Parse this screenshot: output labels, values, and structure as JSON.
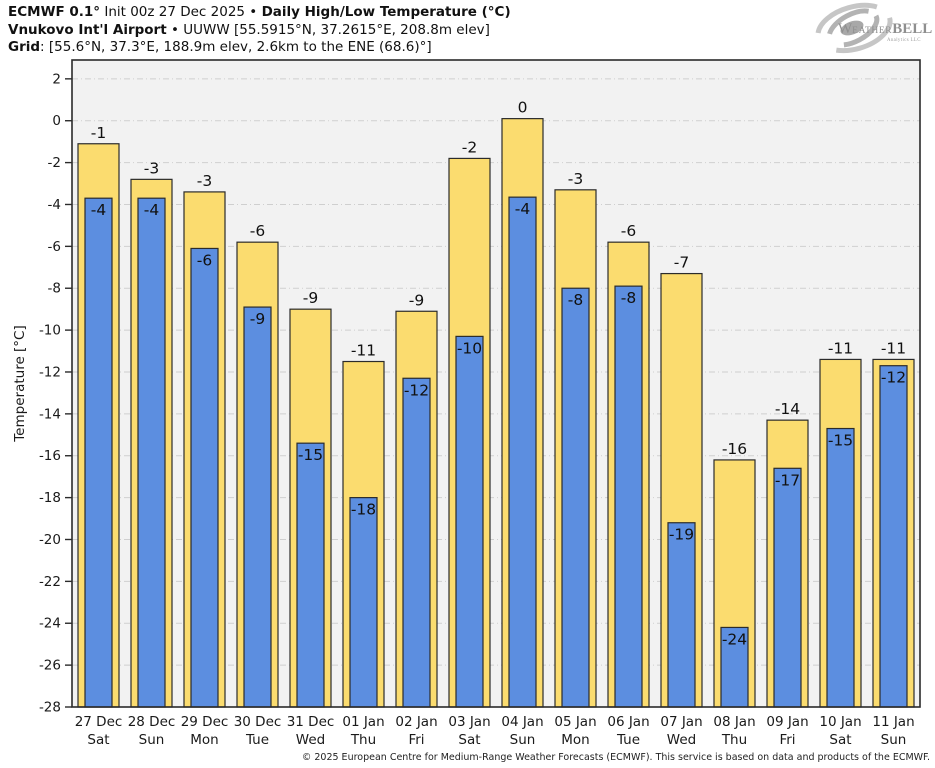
{
  "header": {
    "line1_bold_a": "ECMWF 0.1°",
    "line1_regular": " Init 00z 27 Dec 2025 • ",
    "line1_bold_b": "Daily High/Low Temperature (°C)",
    "line2_bold": "Vnukovo Int'l Airport",
    "line2_regular": " • UUWW [55.5915°N, 37.2615°E, 208.8m elev]",
    "line3_bold": "Grid",
    "line3_regular": ": [55.6°N, 37.3°E, 188.9m elev, 2.6km to the ENE (68.6)°]"
  },
  "logo": {
    "part_w": "W",
    "part_eather": "EATHER",
    "part_bell": "BELL",
    "subtitle": "Analytics LLC"
  },
  "footer": {
    "copyright": "© 2025 European Centre for Medium-Range Weather Forecasts (ECMWF). This service is based on data and products of the ECMWF."
  },
  "colors": {
    "plot_bg": "#f2f2f2",
    "grid": "#cfcfcf",
    "spine": "#2b2b2b",
    "bar_outline": "#2b2b2b",
    "label_text": "#111111",
    "high_bar": "#fbdc6f",
    "low_bar": "#5c8ee0"
  },
  "chart_data": {
    "type": "bar",
    "title": "ECMWF 0.1° Init 00z 27 Dec 2025 • Daily High/Low Temperature (°C)",
    "subtitle": "Vnukovo Int'l Airport • UUWW [55.5915°N, 37.2615°E, 208.8m elev]",
    "xlabel": "",
    "ylabel": "Temperature [°C]",
    "ylim": [
      -28,
      2.9
    ],
    "yticks": [
      2,
      0,
      -2,
      -4,
      -6,
      -8,
      -10,
      -12,
      -14,
      -16,
      -18,
      -20,
      -22,
      -24,
      -26,
      -28
    ],
    "grid": true,
    "legend_position": "none",
    "categories_date": [
      "27 Dec",
      "28 Dec",
      "29 Dec",
      "30 Dec",
      "31 Dec",
      "01 Jan",
      "02 Jan",
      "03 Jan",
      "04 Jan",
      "05 Jan",
      "06 Jan",
      "07 Jan",
      "08 Jan",
      "09 Jan",
      "10 Jan",
      "11 Jan"
    ],
    "categories_day": [
      "Sat",
      "Sun",
      "Mon",
      "Tue",
      "Wed",
      "Thu",
      "Fri",
      "Sat",
      "Sun",
      "Mon",
      "Tue",
      "Wed",
      "Thu",
      "Fri",
      "Sat",
      "Sun"
    ],
    "series": [
      {
        "name": "Daily High",
        "color": "#fbdc6f",
        "values": [
          -1,
          -3,
          -3,
          -6,
          -9,
          -11,
          -9,
          -2,
          0,
          -3,
          -6,
          -7,
          -16,
          -14,
          -11,
          -11
        ],
        "bar_tops_exact": [
          -1.1,
          -2.8,
          -3.4,
          -5.8,
          -9.0,
          -11.5,
          -9.1,
          -1.8,
          0.1,
          -3.3,
          -5.8,
          -7.3,
          -16.2,
          -14.3,
          -11.4,
          -11.4
        ]
      },
      {
        "name": "Daily Low",
        "color": "#5c8ee0",
        "values": [
          -4,
          -4,
          -6,
          -9,
          -15,
          -18,
          -12,
          -10,
          -4,
          -8,
          -8,
          -19,
          -24,
          -17,
          -15,
          -12
        ],
        "bar_tops_exact": [
          -3.7,
          -3.7,
          -6.1,
          -8.9,
          -15.4,
          -18.0,
          -12.3,
          -10.3,
          -3.65,
          -8.0,
          -7.9,
          -19.2,
          -24.2,
          -16.6,
          -14.7,
          -11.7
        ]
      }
    ]
  }
}
